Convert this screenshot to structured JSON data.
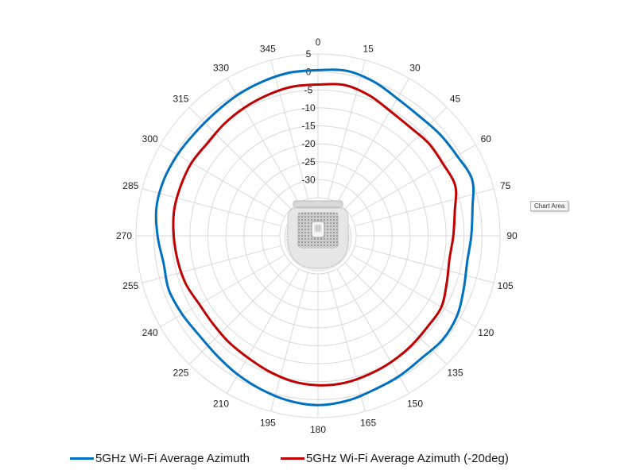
{
  "chart_data": {
    "type": "polar-line",
    "angles": [
      0,
      15,
      30,
      45,
      60,
      75,
      90,
      105,
      120,
      135,
      150,
      165,
      180,
      195,
      210,
      225,
      240,
      255,
      270,
      285,
      300,
      315,
      330,
      345
    ],
    "radial_ticks": [
      "5",
      "0",
      "-5",
      "-10",
      "-15",
      "-20",
      "-25",
      "-30"
    ],
    "radial_values": [
      5,
      0,
      -5,
      -10,
      -15,
      -20,
      -25,
      -30
    ],
    "rlim": [
      -35,
      5
    ],
    "grid": true,
    "legend_position": "bottom",
    "series": [
      {
        "name": "5GHz Wi-Fi Average Azimuth",
        "color": "#0070C0",
        "theta": [
          0,
          10,
          20,
          30,
          40,
          50,
          60,
          70,
          80,
          90,
          100,
          110,
          120,
          130,
          140,
          150,
          160,
          170,
          180,
          190,
          200,
          210,
          220,
          230,
          240,
          250,
          260,
          270,
          280,
          290,
          300,
          310,
          320,
          330,
          340,
          350
        ],
        "values": [
          0.5,
          1,
          0,
          -1.5,
          -2,
          -1.5,
          -1,
          0,
          -2,
          -3,
          -3.5,
          -2.5,
          -1,
          -0.5,
          -1,
          -0.5,
          0,
          1,
          1.5,
          1,
          0,
          -1,
          -2,
          -2.5,
          -2,
          -1.5,
          -2,
          -1,
          0,
          0,
          -0.5,
          -1,
          -1,
          -0.5,
          0,
          0.5
        ]
      },
      {
        "name": "5GHz Wi-Fi Average Azimuth (-20deg)",
        "color": "#C00000",
        "theta": [
          0,
          10,
          20,
          30,
          40,
          50,
          60,
          70,
          80,
          90,
          100,
          110,
          120,
          130,
          140,
          150,
          160,
          170,
          180,
          190,
          200,
          210,
          220,
          230,
          240,
          250,
          260,
          270,
          280,
          290,
          300,
          310,
          320,
          330,
          340,
          350
        ],
        "values": [
          -3.5,
          -3,
          -4,
          -5.5,
          -6,
          -5.5,
          -5.5,
          -5,
          -7,
          -8,
          -8.5,
          -7.5,
          -6,
          -6,
          -5.5,
          -5,
          -4.5,
          -4,
          -4,
          -4.5,
          -5.5,
          -6.5,
          -7,
          -7.5,
          -7.5,
          -6.5,
          -6,
          -5.5,
          -5,
          -5,
          -5,
          -5.5,
          -5,
          -4.5,
          -4,
          -3.5
        ]
      }
    ]
  },
  "legend": {
    "items": [
      {
        "label": "5GHz Wi-Fi Average Azimuth",
        "color": "#0070C0"
      },
      {
        "label": "5GHz Wi-Fi Average Azimuth (-20deg)",
        "color": "#C00000"
      }
    ]
  },
  "tooltip": {
    "text": "Chart Area"
  }
}
